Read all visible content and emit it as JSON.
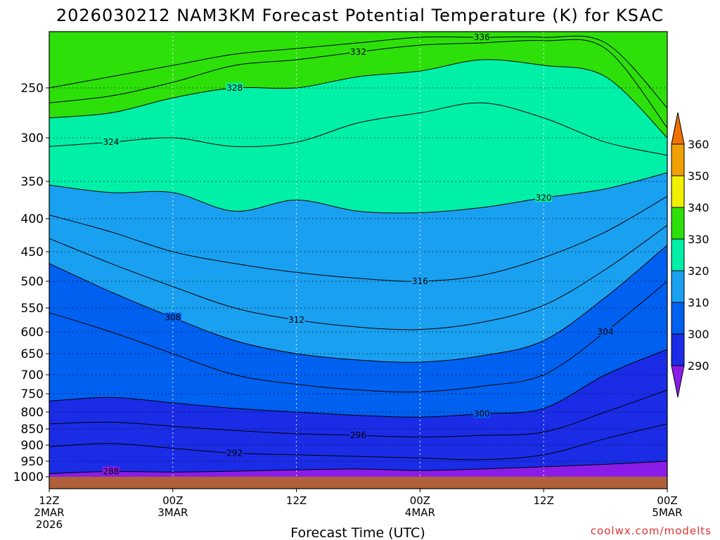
{
  "chart_data": {
    "type": "contour",
    "title": "2026030212 NAM3KM Forecast Potential Temperature (K) for KSAC",
    "xlabel": "Forecast Time (UTC)",
    "ylabel": "",
    "credit": "coolwx.com/modelts",
    "y_axis": {
      "scale": "pressure (inverted)",
      "range": [
        1000,
        200
      ],
      "ticks": [
        250,
        300,
        350,
        400,
        450,
        500,
        550,
        600,
        650,
        700,
        750,
        800,
        850,
        900,
        950,
        1000
      ]
    },
    "x_axis": {
      "range_hours": [
        0,
        60
      ],
      "ticks": [
        {
          "hour": 0,
          "lines": [
            "12Z",
            "2MAR",
            "2026"
          ]
        },
        {
          "hour": 12,
          "lines": [
            "00Z",
            "3MAR"
          ]
        },
        {
          "hour": 24,
          "lines": [
            "12Z"
          ]
        },
        {
          "hour": 36,
          "lines": [
            "00Z",
            "4MAR"
          ]
        },
        {
          "hour": 48,
          "lines": [
            "12Z"
          ]
        },
        {
          "hour": 60,
          "lines": [
            "00Z",
            "5MAR"
          ]
        }
      ]
    },
    "colorbar": {
      "levels": [
        290,
        300,
        310,
        320,
        330,
        340,
        350,
        360
      ],
      "colors": [
        "#8b1ce8",
        "#1a2ce6",
        "#0060f0",
        "#1aa0f0",
        "#00f0a8",
        "#2ee00a",
        "#f0f000",
        "#f0a000",
        "#f07000"
      ]
    },
    "contour_interval_K": 4,
    "contours": [
      {
        "value": 288,
        "points": [
          [
            0,
            990
          ],
          [
            6,
            983
          ],
          [
            12,
            985
          ],
          [
            18,
            982
          ],
          [
            24,
            978
          ],
          [
            30,
            975
          ],
          [
            36,
            980
          ],
          [
            42,
            975
          ],
          [
            48,
            968
          ],
          [
            54,
            960
          ],
          [
            60,
            950
          ]
        ]
      },
      {
        "value": 292,
        "points": [
          [
            0,
            905
          ],
          [
            6,
            895
          ],
          [
            12,
            910
          ],
          [
            18,
            925
          ],
          [
            24,
            930
          ],
          [
            30,
            935
          ],
          [
            36,
            940
          ],
          [
            42,
            945
          ],
          [
            48,
            930
          ],
          [
            54,
            880
          ],
          [
            60,
            835
          ]
        ]
      },
      {
        "value": 296,
        "points": [
          [
            0,
            835
          ],
          [
            6,
            830
          ],
          [
            12,
            842
          ],
          [
            18,
            855
          ],
          [
            24,
            865
          ],
          [
            30,
            870
          ],
          [
            36,
            875
          ],
          [
            42,
            870
          ],
          [
            48,
            860
          ],
          [
            54,
            800
          ],
          [
            60,
            740
          ]
        ]
      },
      {
        "value": 300,
        "points": [
          [
            0,
            770
          ],
          [
            6,
            760
          ],
          [
            12,
            775
          ],
          [
            18,
            790
          ],
          [
            24,
            800
          ],
          [
            30,
            810
          ],
          [
            36,
            815
          ],
          [
            42,
            805
          ],
          [
            48,
            790
          ],
          [
            54,
            700
          ],
          [
            60,
            640
          ]
        ]
      },
      {
        "value": 304,
        "points": [
          [
            0,
            560
          ],
          [
            6,
            600
          ],
          [
            12,
            650
          ],
          [
            18,
            700
          ],
          [
            24,
            725
          ],
          [
            30,
            740
          ],
          [
            36,
            745
          ],
          [
            42,
            730
          ],
          [
            48,
            700
          ],
          [
            54,
            600
          ],
          [
            60,
            500
          ]
        ]
      },
      {
        "value": 308,
        "points": [
          [
            0,
            470
          ],
          [
            6,
            520
          ],
          [
            12,
            570
          ],
          [
            18,
            620
          ],
          [
            24,
            650
          ],
          [
            30,
            665
          ],
          [
            36,
            670
          ],
          [
            42,
            655
          ],
          [
            48,
            620
          ],
          [
            54,
            530
          ],
          [
            60,
            440
          ]
        ]
      },
      {
        "value": 312,
        "points": [
          [
            0,
            430
          ],
          [
            6,
            470
          ],
          [
            12,
            510
          ],
          [
            18,
            550
          ],
          [
            24,
            575
          ],
          [
            30,
            590
          ],
          [
            36,
            595
          ],
          [
            42,
            580
          ],
          [
            48,
            545
          ],
          [
            54,
            480
          ],
          [
            60,
            410
          ]
        ]
      },
      {
        "value": 316,
        "points": [
          [
            0,
            395
          ],
          [
            6,
            420
          ],
          [
            12,
            450
          ],
          [
            18,
            470
          ],
          [
            24,
            485
          ],
          [
            30,
            495
          ],
          [
            36,
            500
          ],
          [
            42,
            490
          ],
          [
            48,
            460
          ],
          [
            54,
            420
          ],
          [
            60,
            370
          ]
        ]
      },
      {
        "value": 320,
        "points": [
          [
            0,
            355
          ],
          [
            6,
            365
          ],
          [
            12,
            365
          ],
          [
            18,
            390
          ],
          [
            24,
            375
          ],
          [
            30,
            390
          ],
          [
            36,
            392
          ],
          [
            42,
            385
          ],
          [
            48,
            372
          ],
          [
            54,
            360
          ],
          [
            60,
            340
          ]
        ]
      },
      {
        "value": 324,
        "points": [
          [
            0,
            310
          ],
          [
            6,
            305
          ],
          [
            12,
            300
          ],
          [
            18,
            310
          ],
          [
            24,
            305
          ],
          [
            30,
            285
          ],
          [
            36,
            275
          ],
          [
            42,
            265
          ],
          [
            48,
            280
          ],
          [
            54,
            305
          ],
          [
            60,
            320
          ]
        ]
      },
      {
        "value": 328,
        "points": [
          [
            0,
            280
          ],
          [
            6,
            275
          ],
          [
            12,
            260
          ],
          [
            18,
            250
          ],
          [
            24,
            250
          ],
          [
            30,
            240
          ],
          [
            36,
            235
          ],
          [
            42,
            225
          ],
          [
            48,
            230
          ],
          [
            54,
            240
          ],
          [
            60,
            300
          ]
        ]
      },
      {
        "value": 332,
        "points": [
          [
            0,
            265
          ],
          [
            6,
            258
          ],
          [
            12,
            245
          ],
          [
            18,
            230
          ],
          [
            24,
            225
          ],
          [
            30,
            218
          ],
          [
            36,
            212
          ],
          [
            42,
            210
          ],
          [
            48,
            208
          ],
          [
            54,
            215
          ],
          [
            60,
            290
          ]
        ]
      },
      {
        "value": 336,
        "points": [
          [
            0,
            250
          ],
          [
            6,
            240
          ],
          [
            12,
            230
          ],
          [
            18,
            220
          ],
          [
            24,
            215
          ],
          [
            30,
            210
          ],
          [
            36,
            205
          ],
          [
            42,
            205
          ],
          [
            48,
            205
          ],
          [
            54,
            210
          ],
          [
            60,
            270
          ]
        ]
      }
    ]
  }
}
